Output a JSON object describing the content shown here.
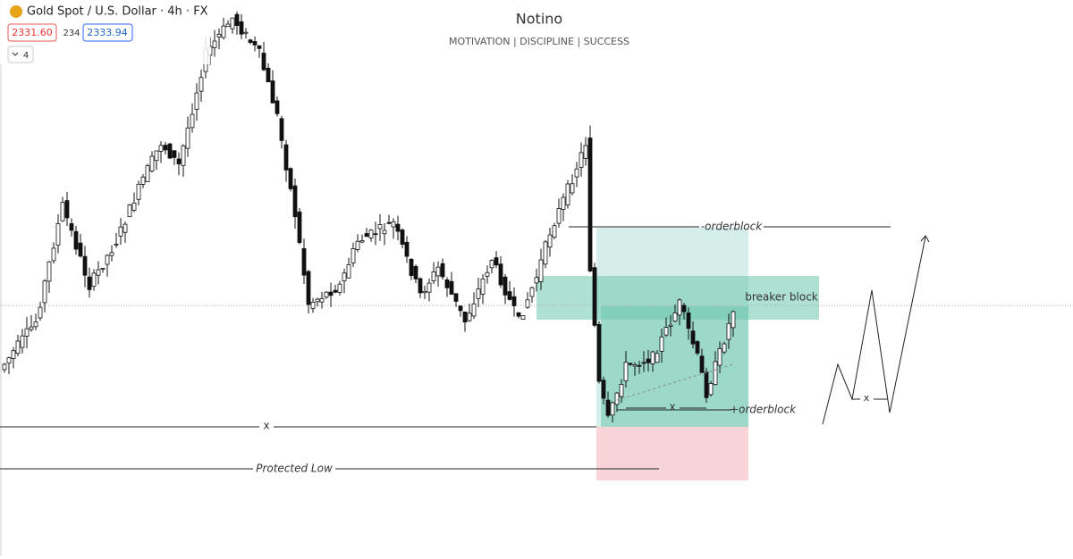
{
  "header": {
    "symbol": "Gold Spot / U.S. Dollar · 4h · FX",
    "bid": "2331.60",
    "spread": "234",
    "ask": "2333.94",
    "indicators": "4"
  },
  "watermark": {
    "title": "Notino",
    "subtitle": "MOTIVATION | DISCIPLINE | SUCCESS"
  },
  "annotations": {
    "minus_orderblock": "-orderblock",
    "breaker_block": "breaker block",
    "plus_orderblock": "+orderblock",
    "x_level": "x",
    "x_range": "x",
    "x_projection": "x",
    "protected_low": "Protected Low"
  }
}
